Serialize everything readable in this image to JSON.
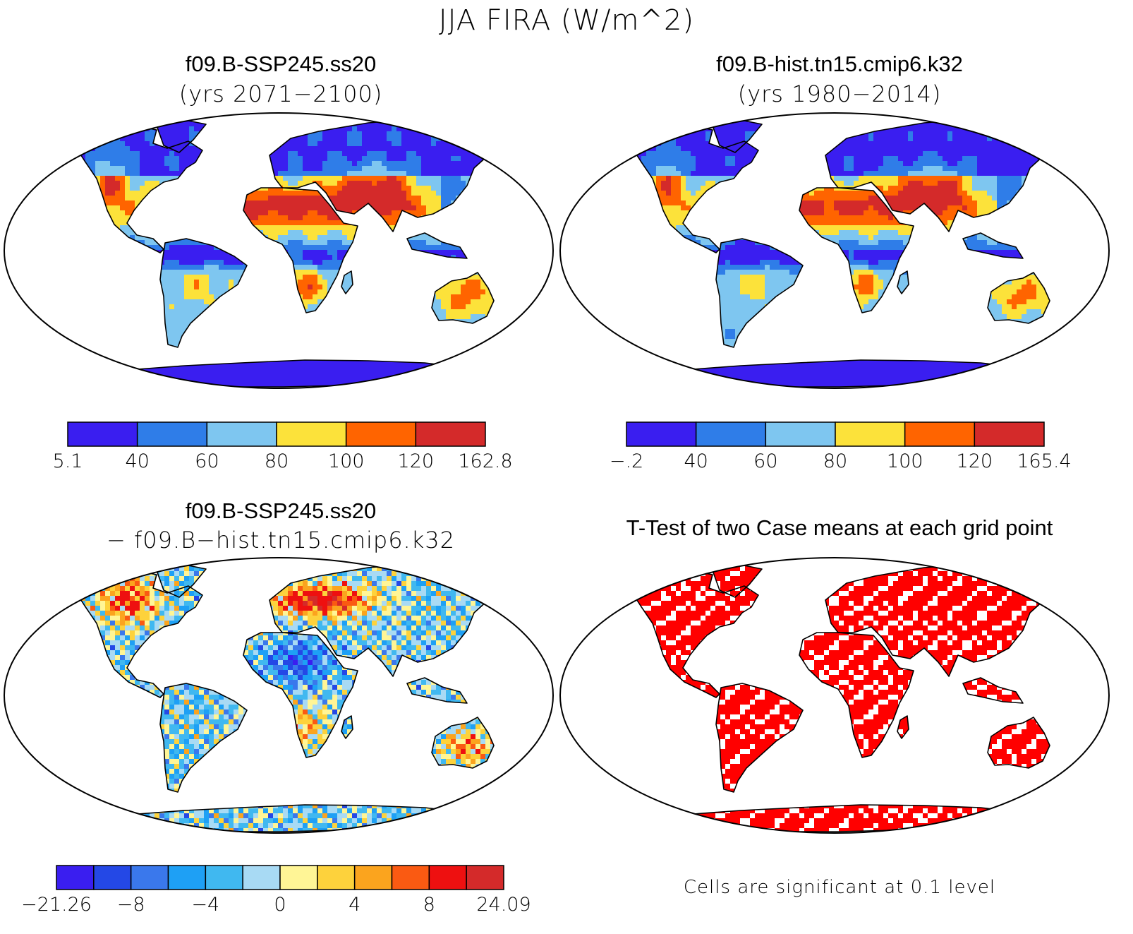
{
  "title": "JJA FIRA (W/m^2)",
  "panels": [
    {
      "title": "f09.B-SSP245.ss20",
      "subtitle": "(yrs 2071−2100)",
      "colorbar": {
        "colors": [
          "#3a1ef0",
          "#2f7de8",
          "#7ec6f0",
          "#fce23a",
          "#ff6400",
          "#d42a2a"
        ],
        "labels": [
          "5.1",
          "40",
          "60",
          "80",
          "100",
          "120",
          "162.8"
        ]
      }
    },
    {
      "title": "f09.B-hist.tn15.cmip6.k32",
      "subtitle": "(yrs 1980−2014)",
      "colorbar": {
        "colors": [
          "#3a1ef0",
          "#2f7de8",
          "#7ec6f0",
          "#fce23a",
          "#ff6400",
          "#d42a2a"
        ],
        "labels": [
          "−.2",
          "40",
          "60",
          "80",
          "100",
          "120",
          "165.4"
        ]
      }
    },
    {
      "title": "f09.B-SSP245.ss20",
      "subtitle": "− f09.B−hist.tn15.cmip6.k32",
      "colorbar": {
        "colors": [
          "#3a1ef0",
          "#2448e6",
          "#3a78ec",
          "#1ea0f5",
          "#40b8f0",
          "#a8daf4",
          "#fff596",
          "#fdd23c",
          "#fba41e",
          "#fa5a12",
          "#ee1010",
          "#d42a2a"
        ],
        "labels": [
          "−21.26",
          "",
          "−8",
          "",
          "−4",
          "",
          "0",
          "",
          "4",
          "",
          "8",
          "",
          "24.09"
        ]
      }
    },
    {
      "title": "T-Test of two Case means at each grid point",
      "subtitle": "",
      "footnote": "Cells are significant at 0.1 level"
    }
  ],
  "map_colors": {
    "ocean": "#ffffff",
    "coast": "#000000",
    "significance": "#ff0000"
  }
}
